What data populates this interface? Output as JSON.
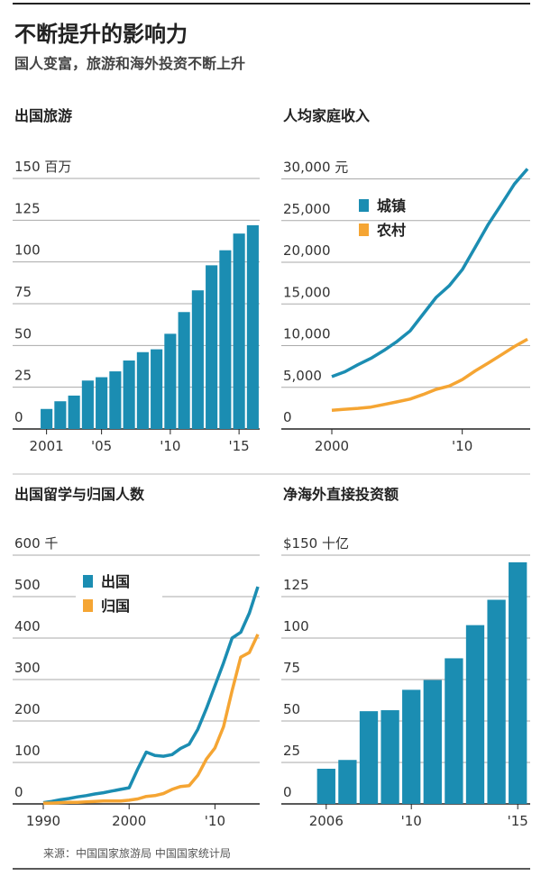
{
  "title": "不断提升的影响力",
  "subtitle": "国人变富，旅游和海外投资不断上升",
  "source": "来源：中国国家旅游局 中国国家统计局",
  "chart_data": [
    {
      "type": "bar",
      "title": "出国旅游",
      "color": "#1b8db2",
      "grid": true,
      "categories": [
        "2001",
        null,
        null,
        null,
        "'05",
        null,
        null,
        null,
        null,
        "'10",
        null,
        null,
        null,
        null,
        "'15",
        null
      ],
      "values": [
        12,
        16.6,
        20,
        29,
        31,
        34.5,
        41,
        46,
        47.7,
        57,
        70,
        83,
        98,
        107,
        117,
        122
      ],
      "ylim": [
        0,
        150
      ],
      "yticks": [
        0,
        25,
        50,
        75,
        100,
        125,
        {
          "value": 150,
          "label": "150 百万"
        }
      ]
    },
    {
      "type": "line",
      "title": "人均家庭收入",
      "grid": true,
      "legend": "upper left",
      "x": [
        2000,
        2001,
        2002,
        2003,
        2004,
        2005,
        2006,
        2007,
        2008,
        2009,
        2010,
        2011,
        2012,
        2013,
        2014,
        2015
      ],
      "series": [
        {
          "name": "城镇",
          "color": "#1b8db2",
          "values": [
            6280,
            6860,
            7703,
            8472,
            9422,
            10493,
            11759,
            13786,
            15781,
            17175,
            19109,
            21810,
            24565,
            26955,
            29381,
            31195
          ]
        },
        {
          "name": "农村",
          "color": "#f5a533",
          "values": [
            2253,
            2366,
            2476,
            2622,
            2936,
            3255,
            3587,
            4140,
            4761,
            5153,
            5919,
            6977,
            7917,
            8896,
            9892,
            10772
          ]
        }
      ],
      "xlim": [
        2000,
        2015
      ],
      "xticks": [
        2000,
        {
          "value": 2010,
          "label": "'10"
        }
      ],
      "ylim": [
        0,
        32000
      ],
      "yticks": [
        {
          "value": 0,
          "label": "0"
        },
        {
          "value": 5000,
          "label": "5,000"
        },
        {
          "value": 10000,
          "label": "10,000"
        },
        {
          "value": 15000,
          "label": "15,000"
        },
        {
          "value": 20000,
          "label": "20,000"
        },
        {
          "value": 25000,
          "label": "25,000"
        },
        {
          "value": 30000,
          "label": "30,000 元"
        }
      ]
    },
    {
      "type": "line",
      "title": "出国留学与归国人数",
      "grid": true,
      "legend": "upper left",
      "x": [
        1990,
        1991,
        1992,
        1993,
        1994,
        1995,
        1996,
        1997,
        1998,
        1999,
        2000,
        2001,
        2002,
        2003,
        2004,
        2005,
        2006,
        2007,
        2008,
        2009,
        2010,
        2011,
        2012,
        2013,
        2014,
        2015
      ],
      "series": [
        {
          "name": "出国",
          "color": "#1b8db2",
          "values": [
            3,
            6,
            10,
            13,
            17,
            20,
            24,
            27,
            31,
            35,
            39,
            84,
            125,
            117,
            115,
            119,
            134,
            144,
            180,
            230,
            285,
            340,
            400,
            414,
            460,
            524
          ]
        },
        {
          "name": "归国",
          "color": "#f5a533",
          "values": [
            2,
            2,
            3,
            4,
            4,
            5,
            6,
            7,
            7,
            7,
            9,
            12,
            18,
            20,
            25,
            35,
            42,
            44,
            69,
            108,
            135,
            186,
            273,
            354,
            365,
            409
          ]
        }
      ],
      "xlim": [
        1990,
        2015
      ],
      "xticks": [
        1990,
        2000,
        {
          "value": 2010,
          "label": "'10"
        }
      ],
      "ylim": [
        0,
        600
      ],
      "yticks": [
        0,
        100,
        200,
        300,
        400,
        500,
        {
          "value": 600,
          "label": "600 千"
        }
      ]
    },
    {
      "type": "bar",
      "title": "净海外直接投资额",
      "color": "#1b8db2",
      "grid": true,
      "categories": [
        "2006",
        null,
        null,
        null,
        "'10",
        null,
        null,
        null,
        null,
        "'15"
      ],
      "values": [
        21.2,
        26.5,
        55.9,
        56.5,
        68.8,
        74.7,
        87.8,
        107.8,
        123.1,
        145.7
      ],
      "ylim": [
        0,
        150
      ],
      "yticks": [
        0,
        25,
        50,
        75,
        100,
        125,
        {
          "value": 150,
          "label": "$150 十亿"
        }
      ]
    }
  ]
}
